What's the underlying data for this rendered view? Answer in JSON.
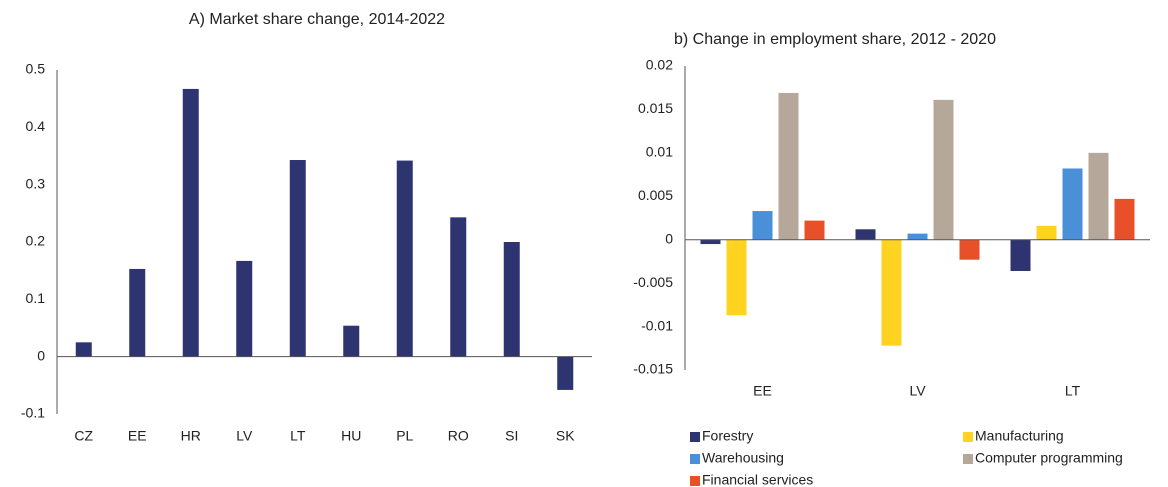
{
  "chart_data": [
    {
      "type": "bar",
      "title": "A) Market share change, 2014-2022",
      "categories": [
        "CZ",
        "EE",
        "HR",
        "LV",
        "LT",
        "HU",
        "PL",
        "RO",
        "SI",
        "SK"
      ],
      "values": [
        0.025,
        0.153,
        0.467,
        0.167,
        0.343,
        0.054,
        0.342,
        0.243,
        0.2,
        -0.058
      ],
      "color": "#2e3470",
      "ylim": [
        -0.1,
        0.5
      ],
      "yticks": [
        -0.1,
        0,
        0.1,
        0.2,
        0.3,
        0.4,
        0.5
      ],
      "grid": false
    },
    {
      "type": "grouped_bar",
      "title": "b) Change in employment share, 2012 - 2020",
      "categories": [
        "EE",
        "LV",
        "LT"
      ],
      "series": [
        {
          "name": "Forestry",
          "color": "#2e3470",
          "values": [
            -0.0005,
            0.0012,
            -0.0036
          ]
        },
        {
          "name": "Manufacturing",
          "color": "#ffd320",
          "values": [
            -0.0087,
            -0.0122,
            0.0016
          ]
        },
        {
          "name": "Warehousing",
          "color": "#4a90d9",
          "values": [
            0.0033,
            0.0007,
            0.0082
          ]
        },
        {
          "name": "Computer programming",
          "color": "#b5a89a",
          "values": [
            0.0169,
            0.0161,
            0.01
          ]
        },
        {
          "name": "Financial services",
          "color": "#e8502a",
          "values": [
            0.0022,
            -0.0023,
            0.0047
          ]
        }
      ],
      "ylim": [
        -0.015,
        0.02
      ],
      "yticks": [
        -0.015,
        -0.01,
        -0.005,
        0,
        0.005,
        0.01,
        0.015,
        0.02
      ],
      "grid": false,
      "legend": "bottom"
    }
  ]
}
